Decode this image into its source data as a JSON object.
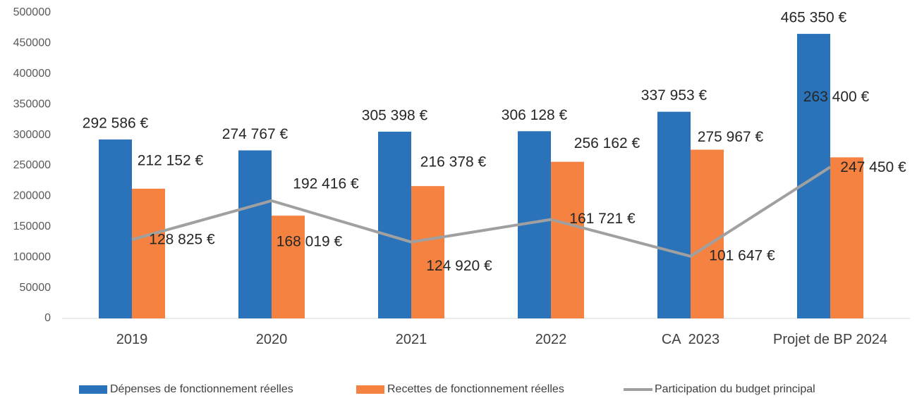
{
  "chart_data": {
    "type": "bar",
    "categories": [
      "2019",
      "2020",
      "2021",
      "2022",
      "CA  2023",
      "Projet de BP 2024"
    ],
    "series": [
      {
        "name": "Dépenses de fonctionnement réelles",
        "color": "#2a72b9",
        "type": "bar",
        "values": [
          292586,
          274767,
          305398,
          306128,
          337953,
          465350
        ],
        "value_labels": [
          "292 586 €",
          "274 767 €",
          "305 398 €",
          "306 128 €",
          "337 953 €",
          "465 350 €"
        ]
      },
      {
        "name": "Recettes de fonctionnement réelles",
        "color": "#f58240",
        "type": "bar",
        "values": [
          212152,
          168019,
          216378,
          256162,
          275967,
          263400
        ],
        "value_labels": [
          "212 152 €",
          "168 019 €",
          "216 378 €",
          "256 162 €",
          "275 967 €",
          "263 400 €"
        ]
      },
      {
        "name": "Participation du budget principal",
        "color": "#a0a0a0",
        "type": "line",
        "values": [
          128825,
          192416,
          124920,
          161721,
          101647,
          247450
        ],
        "value_labels": [
          "128 825 €",
          "192 416 €",
          "124 920 €",
          "161 721 €",
          "101 647 €",
          "247 450 €"
        ]
      }
    ],
    "ylim": [
      0,
      500000
    ],
    "yticks": [
      0,
      50000,
      100000,
      150000,
      200000,
      250000,
      300000,
      350000,
      400000,
      450000,
      500000
    ],
    "grid": false,
    "legend": "bottom"
  }
}
